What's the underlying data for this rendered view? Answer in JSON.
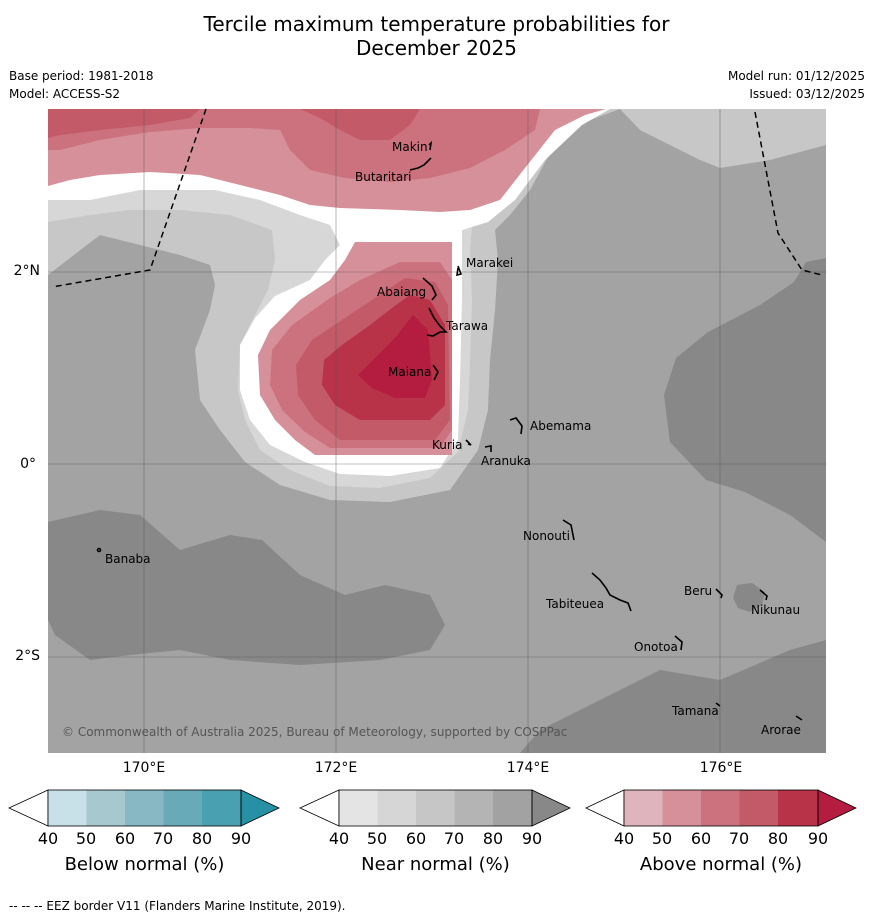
{
  "header": {
    "title_line1": "Tercile maximum temperature probabilities for",
    "title_line2": "December 2025",
    "base_period": "Base period: 1981-2018",
    "model": "Model: ACCESS-S2",
    "model_run": "Model run: 01/12/2025",
    "issued": "Issued: 03/12/2025"
  },
  "map": {
    "copyright": "© Commonwealth of Australia 2025, Bureau of Meteorology, supported by COSPPac",
    "lon_labels": [
      "170°E",
      "172°E",
      "174°E",
      "176°E"
    ],
    "lat_labels": [
      "2°N",
      "0°",
      "2°S"
    ],
    "places": [
      "Makin",
      "Butaritari",
      "Marakei",
      "Abaiang",
      "Tarawa",
      "Maiana",
      "Abemama",
      "Kuria",
      "Aranuka",
      "Banaba",
      "Nonouti",
      "Tabiteuea",
      "Beru",
      "Nikunau",
      "Onotoa",
      "Tamana",
      "Arorae"
    ]
  },
  "colorbars": [
    {
      "title": "Below normal (%)",
      "ticks": [
        "40",
        "50",
        "60",
        "70",
        "80",
        "90"
      ],
      "colors": [
        "#c8e0e8",
        "#a8c8d0",
        "#88b8c4",
        "#68aab8",
        "#48a0b0",
        "#2890a4"
      ]
    },
    {
      "title": "Near normal (%)",
      "ticks": [
        "40",
        "50",
        "60",
        "70",
        "80",
        "90"
      ],
      "colors": [
        "#e4e4e4",
        "#d6d6d6",
        "#c6c6c6",
        "#b4b4b4",
        "#a2a2a2",
        "#888888"
      ]
    },
    {
      "title": "Above normal (%)",
      "ticks": [
        "40",
        "50",
        "60",
        "70",
        "80",
        "90"
      ],
      "colors": [
        "#e0b4bc",
        "#d6909a",
        "#cc727e",
        "#c25a68",
        "#b83248",
        "#b41c40"
      ]
    }
  ],
  "legend": {
    "eez_line": "-- -- -- EEZ border V11 (Flanders Marine Institute, 2019)."
  }
}
